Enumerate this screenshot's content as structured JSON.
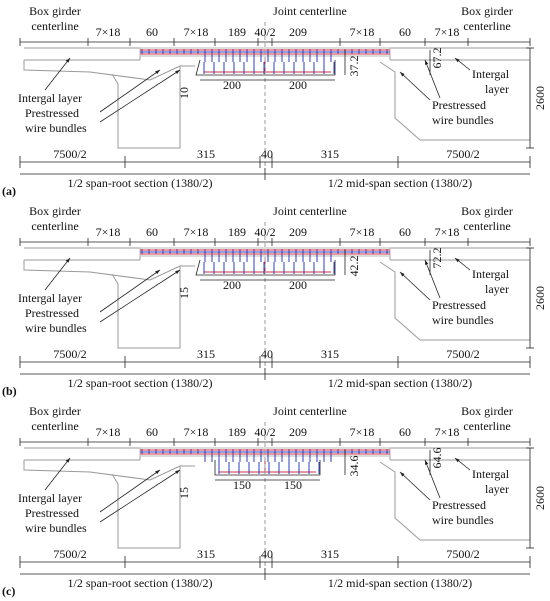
{
  "panels": [
    {
      "label": "(a)",
      "left_centerline": [
        "Box girder",
        "centerline"
      ],
      "joint_centerline": "Joint centerline",
      "right_centerline": [
        "Box girder",
        "centerline"
      ],
      "top_dims": [
        "7×18",
        "60",
        "7×18",
        "189",
        "40/2",
        "209",
        "7×18",
        "60",
        "7×18"
      ],
      "layer_depth": "10",
      "inner_height": "37.2",
      "outer_height": "67.2",
      "widths": [
        "200",
        "200"
      ],
      "left_layer": [
        "Intergal layer"
      ],
      "left_wire": [
        "Prestressed",
        "wire bundles"
      ],
      "right_layer": [
        "Intergal",
        "layer"
      ],
      "right_wire": [
        "Prestressed",
        "wire bundles"
      ],
      "height": "2600",
      "bottom_dims": [
        "7500/2",
        "315",
        "40",
        "315",
        "7500/2"
      ],
      "sections": [
        "1/2 span-root section (1380/2)",
        "1/2 mid-span section (1380/2)"
      ]
    },
    {
      "label": "(b)",
      "left_centerline": [
        "Box girder",
        "centerline"
      ],
      "joint_centerline": "Joint centerline",
      "right_centerline": [
        "Box girder",
        "centerline"
      ],
      "top_dims": [
        "7×18",
        "60",
        "7×18",
        "189",
        "40/2",
        "209",
        "7×18",
        "60",
        "7×18"
      ],
      "layer_depth": "15",
      "inner_height": "42.2",
      "outer_height": "72.2",
      "widths": [
        "200",
        "200"
      ],
      "left_layer": [
        "Intergal layer"
      ],
      "left_wire": [
        "Prestressed",
        "wire bundles"
      ],
      "right_layer": [
        "Intergal",
        "layer"
      ],
      "right_wire": [
        "Prestressed",
        "wire bundles"
      ],
      "height": "2600",
      "bottom_dims": [
        "7500/2",
        "315",
        "40",
        "315",
        "7500/2"
      ],
      "sections": [
        "1/2 span-root section (1380/2)",
        "1/2 mid-span section (1380/2)"
      ]
    },
    {
      "label": "(c)",
      "left_centerline": [
        "Box girder",
        "centerline"
      ],
      "joint_centerline": "Joint centerline",
      "right_centerline": [
        "Box girder",
        "centerline"
      ],
      "top_dims": [
        "7×18",
        "60",
        "7×18",
        "189",
        "40/2",
        "209",
        "7×18",
        "60",
        "7×18"
      ],
      "layer_depth": "15",
      "inner_height": "34.6",
      "outer_height": "64.6",
      "widths": [
        "150",
        "150"
      ],
      "left_layer": [
        "Intergal layer"
      ],
      "left_wire": [
        "Prestressed",
        "wire bundles"
      ],
      "right_layer": [
        "Intergal",
        "layer"
      ],
      "right_wire": [
        "Prestressed",
        "wire bundles"
      ],
      "height": "2600",
      "bottom_dims": [
        "7500/2",
        "315",
        "40",
        "315",
        "7500/2"
      ],
      "sections": [
        "1/2 span-root section (1380/2)",
        "1/2 mid-span section (1380/2)"
      ]
    }
  ]
}
